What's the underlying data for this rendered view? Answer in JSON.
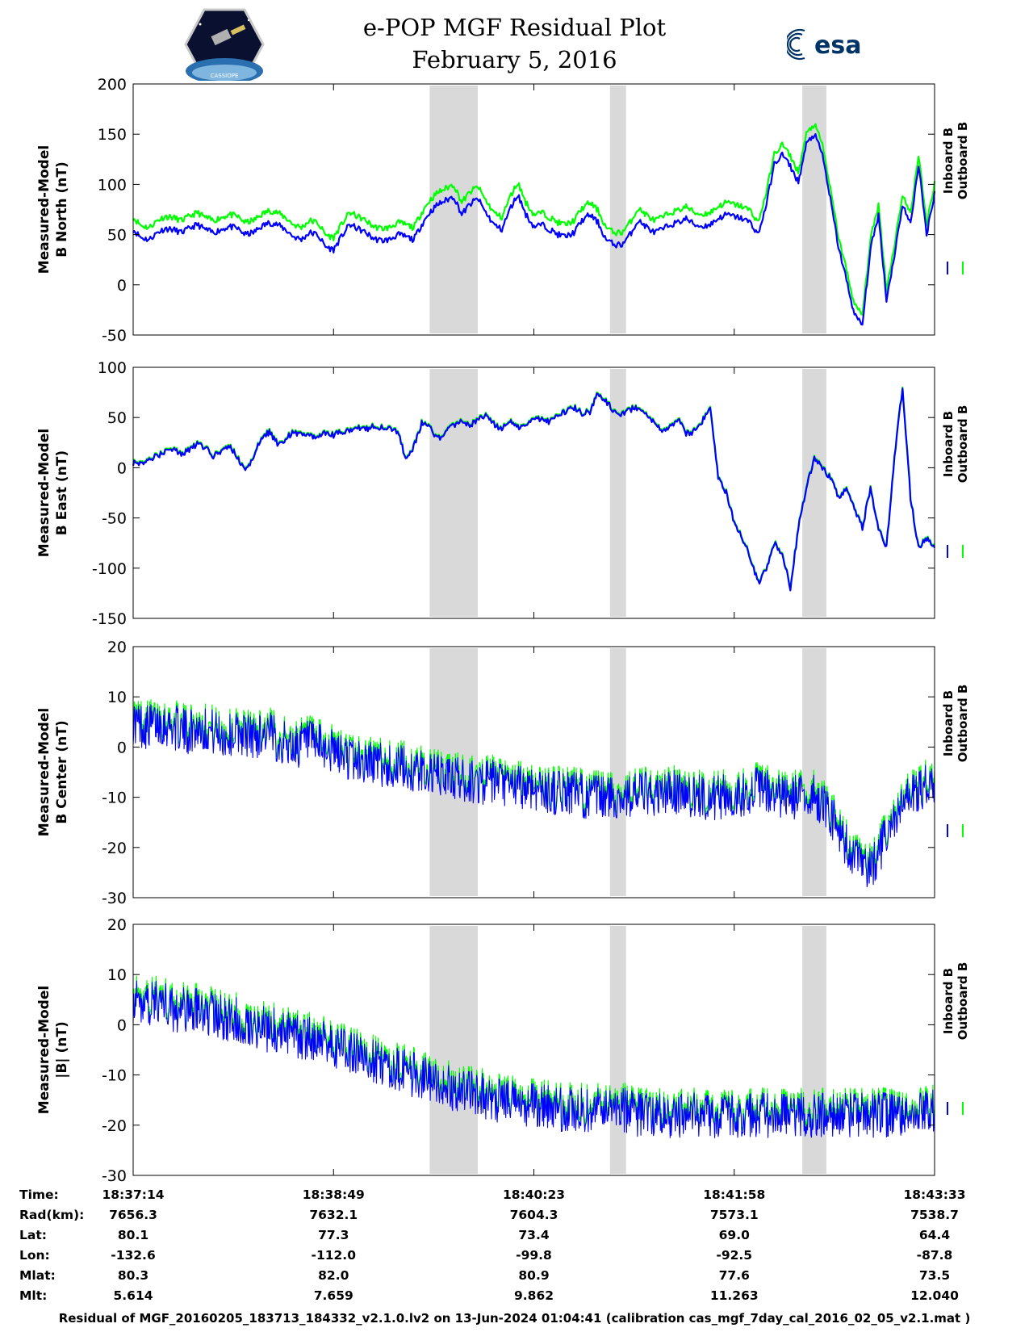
{
  "header": {
    "title_line1": "e-POP MGF Residual Plot",
    "title_line2": "February 5, 2016",
    "logo_left": "cassiope-mission-logo",
    "logo_right": "esa-logo",
    "logo_right_text": "esa",
    "logo_left_text": "CASSIOPE"
  },
  "chart_data": [
    {
      "type": "line",
      "ylabel_line1": "Measured-Model",
      "ylabel_line2": "B North (nT)",
      "ylim": [
        -50,
        200
      ],
      "yticks": [
        200,
        150,
        100,
        50,
        0,
        -50
      ],
      "shaded_regions": [
        [
          0.37,
          0.43
        ],
        [
          0.595,
          0.615
        ],
        [
          0.835,
          0.865
        ]
      ],
      "series": [
        {
          "name": "Inboard B",
          "color": "#0000ff",
          "values": [
            55,
            47,
            45,
            52,
            56,
            55,
            52,
            56,
            60,
            55,
            52,
            55,
            58,
            56,
            50,
            52,
            58,
            62,
            60,
            55,
            48,
            45,
            52,
            50,
            38,
            35,
            48,
            60,
            56,
            52,
            46,
            44,
            45,
            50,
            48,
            45,
            60,
            72,
            80,
            84,
            88,
            70,
            80,
            86,
            72,
            60,
            55,
            75,
            90,
            70,
            58,
            60,
            55,
            50,
            48,
            52,
            64,
            70,
            62,
            45,
            40,
            40,
            50,
            64,
            58,
            52,
            55,
            60,
            62,
            66,
            60,
            58,
            60,
            66,
            70,
            68,
            66,
            62,
            50,
            80,
            120,
            130,
            118,
            102,
            140,
            150,
            130,
            85,
            38,
            5,
            -30,
            -40,
            35,
            70,
            -15,
            30,
            80,
            60,
            120,
            50,
            92
          ]
        },
        {
          "name": "Outboard B",
          "color": "#00ff00",
          "values": [
            67,
            59,
            57,
            64,
            68,
            67,
            64,
            68,
            72,
            67,
            64,
            67,
            70,
            68,
            62,
            64,
            70,
            74,
            72,
            67,
            60,
            57,
            64,
            62,
            50,
            47,
            60,
            72,
            68,
            64,
            58,
            56,
            57,
            62,
            60,
            57,
            72,
            84,
            92,
            96,
            100,
            82,
            92,
            98,
            84,
            72,
            67,
            87,
            102,
            82,
            70,
            72,
            67,
            62,
            60,
            64,
            76,
            82,
            74,
            57,
            52,
            52,
            62,
            76,
            70,
            64,
            67,
            72,
            74,
            78,
            72,
            70,
            72,
            78,
            82,
            80,
            78,
            74,
            62,
            92,
            130,
            140,
            128,
            112,
            150,
            160,
            140,
            95,
            48,
            15,
            -20,
            -30,
            45,
            80,
            -5,
            40,
            90,
            70,
            130,
            60,
            102
          ]
        }
      ]
    },
    {
      "type": "line",
      "ylabel_line1": "Measured-Model",
      "ylabel_line2": "B East (nT)",
      "ylim": [
        -150,
        100
      ],
      "yticks": [
        100,
        50,
        0,
        -50,
        -100,
        -150
      ],
      "shaded_regions": [
        [
          0.37,
          0.43
        ],
        [
          0.595,
          0.615
        ],
        [
          0.835,
          0.865
        ]
      ],
      "series": [
        {
          "name": "Inboard B",
          "color": "#0000ff",
          "values": [
            5,
            5,
            8,
            12,
            16,
            18,
            14,
            18,
            24,
            20,
            12,
            16,
            22,
            10,
            -4,
            12,
            28,
            36,
            24,
            28,
            36,
            32,
            32,
            30,
            34,
            32,
            36,
            38,
            40,
            38,
            42,
            40,
            38,
            36,
            10,
            20,
            45,
            40,
            28,
            35,
            42,
            46,
            42,
            48,
            52,
            44,
            38,
            48,
            40,
            44,
            50,
            48,
            46,
            52,
            56,
            60,
            54,
            56,
            74,
            66,
            56,
            54,
            58,
            60,
            52,
            44,
            36,
            40,
            50,
            34,
            36,
            46,
            62,
            -10,
            -25,
            -55,
            -70,
            -90,
            -115,
            -100,
            -75,
            -85,
            -120,
            -60,
            -20,
            10,
            0,
            -10,
            -30,
            -20,
            -40,
            -60,
            -20,
            -60,
            -80,
            10,
            80,
            -30,
            -80,
            -70,
            -80
          ]
        },
        {
          "name": "Outboard B",
          "color": "#00ff00",
          "values": [
            6,
            6,
            9,
            13,
            17,
            19,
            15,
            19,
            25,
            21,
            13,
            17,
            23,
            11,
            -3,
            13,
            29,
            37,
            25,
            29,
            37,
            33,
            33,
            31,
            35,
            33,
            37,
            39,
            41,
            39,
            43,
            41,
            39,
            37,
            11,
            21,
            46,
            41,
            29,
            36,
            43,
            47,
            43,
            49,
            53,
            45,
            39,
            49,
            41,
            45,
            51,
            49,
            47,
            53,
            57,
            61,
            55,
            57,
            75,
            67,
            57,
            55,
            59,
            61,
            53,
            45,
            37,
            41,
            51,
            35,
            37,
            47,
            63,
            -9,
            -24,
            -54,
            -69,
            -89,
            -114,
            -99,
            -74,
            -84,
            -119,
            -59,
            -19,
            11,
            1,
            -9,
            -29,
            -19,
            -39,
            -59,
            -19,
            -59,
            -79,
            11,
            81,
            -29,
            -79,
            -69,
            -79
          ]
        }
      ]
    },
    {
      "type": "line",
      "ylabel_line1": "Measured-Model",
      "ylabel_line2": "B Center (nT)",
      "ylim": [
        -30,
        20
      ],
      "yticks": [
        20,
        10,
        0,
        -10,
        -20,
        -30
      ],
      "shaded_regions": [
        [
          0.37,
          0.43
        ],
        [
          0.595,
          0.615
        ],
        [
          0.835,
          0.865
        ]
      ],
      "series": [
        {
          "name": "Inboard B",
          "color": "#0000ff",
          "values": [
            5,
            4,
            5,
            4,
            3,
            4,
            3,
            2,
            3,
            2,
            3,
            1,
            0,
            1,
            0,
            -1,
            -2,
            -3,
            -3,
            -4,
            -4,
            -5,
            -5,
            -6,
            -6,
            -7,
            -7,
            -7,
            -8,
            -8,
            -8,
            -9,
            -9,
            -9,
            -10,
            -10,
            -10,
            -10,
            -9,
            -10,
            -9,
            -9,
            -10,
            -10,
            -10,
            -10,
            -9,
            -8,
            -10,
            -10,
            -10,
            -10,
            -12,
            -18,
            -22,
            -25,
            -20,
            -15,
            -10,
            -8,
            -7
          ]
        },
        {
          "name": "Outboard B",
          "color": "#00ff00",
          "values": [
            6,
            5,
            6,
            5,
            4,
            5,
            4,
            3,
            4,
            3,
            4,
            2,
            1,
            2,
            1,
            0,
            -1,
            -2,
            -2,
            -3,
            -3,
            -4,
            -4,
            -5,
            -5,
            -6,
            -6,
            -6,
            -7,
            -7,
            -7,
            -8,
            -8,
            -8,
            -9,
            -9,
            -9,
            -9,
            -8,
            -9,
            -8,
            -8,
            -9,
            -9,
            -9,
            -9,
            -8,
            -7,
            -9,
            -9,
            -9,
            -9,
            -11,
            -17,
            -21,
            -24,
            -19,
            -14,
            -9,
            -7,
            -6
          ]
        }
      ]
    },
    {
      "type": "line",
      "ylabel_line1": "Measured-Model",
      "ylabel_line2": "|B| (nT)",
      "ylim": [
        -30,
        20
      ],
      "yticks": [
        20,
        10,
        0,
        -10,
        -20,
        -30
      ],
      "shaded_regions": [
        [
          0.37,
          0.43
        ],
        [
          0.595,
          0.615
        ],
        [
          0.835,
          0.865
        ]
      ],
      "series": [
        {
          "name": "Inboard B",
          "color": "#0000ff",
          "values": [
            5,
            4,
            5,
            3,
            3,
            3,
            2,
            1,
            1,
            0,
            -1,
            -1,
            -2,
            -3,
            -3,
            -4,
            -5,
            -6,
            -7,
            -8,
            -9,
            -10,
            -11,
            -12,
            -13,
            -13,
            -14,
            -15,
            -15,
            -16,
            -16,
            -16,
            -17,
            -17,
            -17,
            -17,
            -17,
            -17,
            -18,
            -18,
            -18,
            -18,
            -18,
            -18,
            -18,
            -18,
            -18,
            -18,
            -18,
            -18,
            -18,
            -18,
            -18,
            -18,
            -18,
            -18,
            -18,
            -18,
            -18,
            -18,
            -17
          ]
        },
        {
          "name": "Outboard B",
          "color": "#00ff00",
          "values": [
            6,
            5,
            6,
            4,
            4,
            4,
            3,
            2,
            2,
            1,
            0,
            0,
            -1,
            -2,
            -2,
            -3,
            -4,
            -5,
            -6,
            -7,
            -8,
            -9,
            -10,
            -11,
            -12,
            -12,
            -13,
            -14,
            -14,
            -15,
            -15,
            -15,
            -16,
            -16,
            -16,
            -16,
            -16,
            -16,
            -17,
            -17,
            -17,
            -17,
            -17,
            -17,
            -17,
            -17,
            -17,
            -17,
            -17,
            -17,
            -17,
            -17,
            -17,
            -17,
            -17,
            -17,
            -17,
            -17,
            -17,
            -17,
            -16
          ]
        }
      ]
    }
  ],
  "legend": {
    "inboard": "Inboard B",
    "outboard": "Outboard B"
  },
  "ephemeris": {
    "row_labels": [
      "Time:",
      "Rad(km):",
      "Lat:",
      "Lon:",
      "Mlat:",
      "Mlt:"
    ],
    "columns": [
      [
        "18:37:14",
        "7656.3",
        "80.1",
        "-132.6",
        "80.3",
        "5.614"
      ],
      [
        "18:38:49",
        "7632.1",
        "77.3",
        "-112.0",
        "82.0",
        "7.659"
      ],
      [
        "18:40:23",
        "7604.3",
        "73.4",
        "-99.8",
        "80.9",
        "9.862"
      ],
      [
        "18:41:58",
        "7573.1",
        "69.0",
        "-92.5",
        "77.6",
        "11.263"
      ],
      [
        "18:43:33",
        "7538.7",
        "64.4",
        "-87.8",
        "73.5",
        "12.040"
      ]
    ]
  },
  "footnote": "Residual of MGF_20160205_183713_184332_v2.1.0.lv2 on 13-Jun-2024 01:04:41 (calibration cas_mgf_7day_cal_2016_02_05_v2.1.mat )"
}
